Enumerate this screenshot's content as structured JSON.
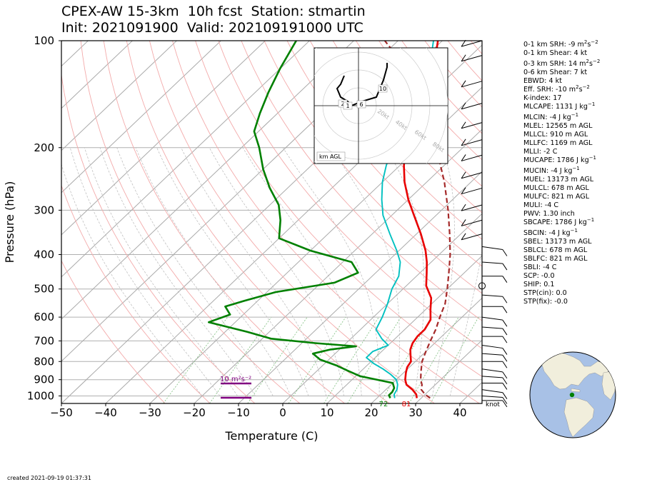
{
  "title_line1": "CPEX-AW 15-3km  10h fcst  Station: stmartin",
  "title_line2": "Init: 2021091900  Valid: 202109191000 UTC",
  "footer": "created 2021-09-19 01:37:31",
  "colors": {
    "temperature": "#e80000",
    "dewpoint": "#008000",
    "wetbulb": "#00c0c0",
    "parcel": "#a52a2a",
    "srh": "#800080",
    "globe_ocean": "#a8c1e6",
    "globe_land": "#f1eedc",
    "station_dot": "#008000"
  },
  "indices": [
    {
      "text": "0-1 km SRH: -9 m",
      "unit_sup": "2",
      "tail": "s",
      "tail_sup": "−2"
    },
    {
      "text": "0-1 km Shear: 4 kt"
    },
    {
      "gap": true
    },
    {
      "text": "0-3 km SRH: 14 m",
      "unit_sup": "2",
      "tail": "s",
      "tail_sup": "−2"
    },
    {
      "text": "0-6 km Shear: 7 kt"
    },
    {
      "text": "EBWD: 4 kt"
    },
    {
      "text": "Eff. SRH: -10 m",
      "unit_sup": "2",
      "tail": "s",
      "tail_sup": "−2"
    },
    {
      "text": "K-index: 17"
    },
    {
      "text": "MLCAPE: 1131 J kg",
      "tail_sup": "−1"
    },
    {
      "gap": true
    },
    {
      "text": "MLCIN: -4 J kg",
      "tail_sup": "−1"
    },
    {
      "text": "MLEL: 12565 m AGL"
    },
    {
      "text": "MLLCL: 910 m AGL"
    },
    {
      "text": "MLLFC: 1169 m AGL"
    },
    {
      "text": "MLLI: -2 C"
    },
    {
      "text": "MUCAPE: 1786 J kg",
      "tail_sup": "−1"
    },
    {
      "gap": true
    },
    {
      "text": "MUCIN: -4 J kg",
      "tail_sup": "−1"
    },
    {
      "text": "MUEL: 13173 m AGL"
    },
    {
      "text": "MULCL: 678 m AGL"
    },
    {
      "text": "MULFC: 821 m AGL"
    },
    {
      "text": "MULI: -4 C"
    },
    {
      "text": "PWV: 1.30 inch"
    },
    {
      "text": "SBCAPE: 1786 J kg",
      "tail_sup": "−1"
    },
    {
      "gap": true
    },
    {
      "text": "SBCIN: -4 J kg",
      "tail_sup": "−1"
    },
    {
      "text": "SBEL: 13173 m AGL"
    },
    {
      "text": "SBLCL: 678 m AGL"
    },
    {
      "text": "SBLFC: 821 m AGL"
    },
    {
      "text": "SBLI: -4 C"
    },
    {
      "text": "SCP: -0.0"
    },
    {
      "text": "SHIP: 0.1"
    },
    {
      "text": "STP(cin): 0.0"
    },
    {
      "text": "STP(fix): -0.0"
    }
  ],
  "chart_data": [
    {
      "type": "line",
      "subtype": "skew-T log-p sounding",
      "xlabel": "Temperature (C)",
      "ylabel": "Pressure (hPa)",
      "xlim": [
        -50,
        45
      ],
      "ylim": [
        1050,
        100
      ],
      "y_scale": "log",
      "xticks": [
        -50,
        -40,
        -30,
        -20,
        -10,
        0,
        10,
        20,
        30,
        40
      ],
      "yticks": [
        100,
        200,
        300,
        400,
        500,
        600,
        700,
        800,
        900,
        1000
      ],
      "grid": true,
      "series": [
        {
          "key": "temperature",
          "points": [
            [
              1014,
              29
            ],
            [
              990,
              28
            ],
            [
              960,
              26
            ],
            [
              930,
              23.5
            ],
            [
              900,
              22
            ],
            [
              860,
              20.5
            ],
            [
              830,
              19.5
            ],
            [
              800,
              19
            ],
            [
              770,
              17.5
            ],
            [
              740,
              16
            ],
            [
              710,
              15
            ],
            [
              680,
              14.5
            ],
            [
              650,
              14.5
            ],
            [
              610,
              13.5
            ],
            [
              570,
              11
            ],
            [
              530,
              8.5
            ],
            [
              490,
              4.5
            ],
            [
              450,
              1.5
            ],
            [
              420,
              -1
            ],
            [
              390,
              -4
            ],
            [
              350,
              -9
            ],
            [
              310,
              -15
            ],
            [
              280,
              -20
            ],
            [
              250,
              -25
            ],
            [
              225,
              -29
            ],
            [
              200,
              -33
            ],
            [
              180,
              -36
            ],
            [
              160,
              -39
            ],
            [
              140,
              -43
            ],
            [
              125,
              -46
            ],
            [
              110,
              -48
            ],
            [
              100,
              -51
            ]
          ]
        },
        {
          "key": "dewpoint",
          "points": [
            [
              1014,
              23
            ],
            [
              995,
              22
            ],
            [
              975,
              22
            ],
            [
              950,
              21.5
            ],
            [
              920,
              20
            ],
            [
              880,
              11
            ],
            [
              850,
              7
            ],
            [
              820,
              3
            ],
            [
              790,
              -2
            ],
            [
              760,
              -5
            ],
            [
              740,
              -2
            ],
            [
              725,
              3
            ],
            [
              710,
              -7
            ],
            [
              690,
              -18
            ],
            [
              660,
              -25
            ],
            [
              620,
              -36
            ],
            [
              590,
              -33
            ],
            [
              560,
              -36
            ],
            [
              540,
              -33
            ],
            [
              510,
              -28
            ],
            [
              480,
              -17
            ],
            [
              450,
              -14
            ],
            [
              420,
              -18
            ],
            [
              390,
              -30
            ],
            [
              360,
              -40
            ],
            [
              320,
              -44
            ],
            [
              290,
              -48
            ],
            [
              260,
              -54
            ],
            [
              230,
              -60
            ],
            [
              200,
              -66
            ],
            [
              180,
              -71
            ],
            [
              160,
              -74
            ],
            [
              140,
              -77
            ],
            [
              120,
              -80
            ],
            [
              100,
              -83
            ]
          ]
        },
        {
          "key": "wetbulb",
          "points": [
            [
              1014,
              24
            ],
            [
              990,
              23
            ],
            [
              960,
              22.5
            ],
            [
              930,
              21.5
            ],
            [
              900,
              20
            ],
            [
              870,
              17.5
            ],
            [
              840,
              14.5
            ],
            [
              810,
              11
            ],
            [
              780,
              8
            ],
            [
              750,
              8
            ],
            [
              720,
              10
            ],
            [
              690,
              7
            ],
            [
              650,
              3.5
            ],
            [
              600,
              2
            ],
            [
              550,
              0
            ],
            [
              500,
              -2.5
            ],
            [
              460,
              -4
            ],
            [
              420,
              -7
            ],
            [
              390,
              -10.5
            ],
            [
              350,
              -16
            ],
            [
              310,
              -22
            ],
            [
              280,
              -26
            ],
            [
              250,
              -30
            ],
            [
              225,
              -33
            ],
            [
              200,
              -36
            ],
            [
              180,
              -38
            ],
            [
              160,
              -41
            ],
            [
              140,
              -44
            ],
            [
              125,
              -47
            ],
            [
              110,
              -49
            ],
            [
              100,
              -52
            ]
          ]
        },
        {
          "key": "parcel",
          "points": [
            [
              1014,
              32
            ],
            [
              990,
              30
            ],
            [
              960,
              28
            ],
            [
              930,
              27
            ],
            [
              900,
              25.5
            ],
            [
              850,
              23.5
            ],
            [
              800,
              21.5
            ],
            [
              750,
              20
            ],
            [
              700,
              18.5
            ],
            [
              650,
              17
            ],
            [
              600,
              15
            ],
            [
              550,
              13
            ],
            [
              500,
              10
            ],
            [
              450,
              6.5
            ],
            [
              400,
              2.5
            ],
            [
              350,
              -2.5
            ],
            [
              300,
              -8.5
            ],
            [
              250,
              -16
            ],
            [
              200,
              -26
            ],
            [
              170,
              -33
            ],
            [
              150,
              -40
            ],
            [
              130,
              -47
            ],
            [
              115,
              -54
            ],
            [
              100,
              -63
            ]
          ]
        }
      ],
      "annotations": [
        "72",
        "81",
        "10 m²s⁻²"
      ],
      "wind_barb_unit": "knot"
    },
    {
      "type": "line",
      "subtype": "hodograph",
      "label": "km AGL",
      "ring_labels": [
        "20kt",
        "40kt",
        "60kt",
        "80kt"
      ],
      "height_labels": [
        "2",
        "1",
        "6",
        "10"
      ],
      "points": [
        [
          -4,
          7
        ],
        [
          -5,
          5
        ],
        [
          -6,
          4
        ],
        [
          -5,
          2
        ],
        [
          -3,
          1
        ],
        [
          -2,
          0
        ],
        [
          1,
          1
        ],
        [
          5,
          2
        ],
        [
          6,
          4
        ],
        [
          7,
          6
        ],
        [
          8,
          9
        ],
        [
          8,
          10
        ]
      ]
    }
  ]
}
